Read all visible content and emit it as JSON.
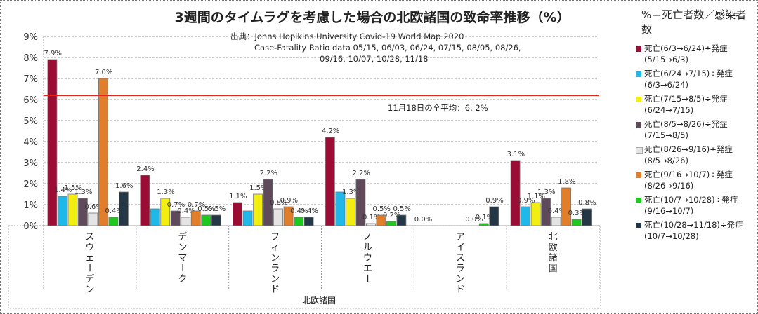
{
  "chart_data": {
    "type": "bar",
    "title": "3週間のタイムラグを考慮した場合の北欧諸国の致命率推移（%）",
    "source_lines": [
      "出典：Johns Hopikins University   Covid-19 World Map 2020",
      "Case-Fatality Ratio data   05/15, 06/03, 06/24,  07/15, 08/05, 08/26,",
      "09/16, 10/07, 10/28,  11/18"
    ],
    "xlabel": "北欧諸国",
    "ylabel": "",
    "ylim": [
      0,
      9
    ],
    "yticks": [
      "0%",
      "1%",
      "2%",
      "3%",
      "4%",
      "5%",
      "6%",
      "7%",
      "8%",
      "9%"
    ],
    "grid": true,
    "legend_title": "%＝死亡者数／感染者数",
    "legend_position": "right",
    "categories": [
      "スウェーデン",
      "デンマーク",
      "フィンランド",
      "ノルウエー",
      "アイスランド",
      "北欧諸国"
    ],
    "series": [
      {
        "name": "死亡(6/3→6/24)÷発症(5/15→6/3)",
        "line1": "死亡(6/3→6/24)÷発症",
        "line2": "(5/15→6/3)",
        "color": "#9b0d34",
        "values": [
          7.9,
          2.4,
          1.1,
          4.2,
          0.0,
          3.1
        ],
        "labels": [
          "7.9%",
          "2.4%",
          "1.1%",
          "4.2%",
          "0.0%",
          "3.1%"
        ]
      },
      {
        "name": "死亡(6/24→7/15)÷発症(6/3→6/24)",
        "line1": "死亡(6/24→7/15)÷発症",
        "line2": "(6/3→6/24)",
        "color": "#1fb8e8",
        "values": [
          1.4,
          0.8,
          0.7,
          1.6,
          0.0,
          0.9
        ],
        "labels": [
          "1.4%",
          "",
          "",
          "",
          "",
          "0.9%"
        ]
      },
      {
        "name": "死亡(7/15→8/5)÷発症(6/24→7/15)",
        "line1": "死亡(7/15→8/5)÷発症",
        "line2": "(6/24→7/15)",
        "color": "#f2ee12",
        "values": [
          1.5,
          1.3,
          1.5,
          1.3,
          0.0,
          1.1
        ],
        "labels": [
          "1.5%",
          "1.3%",
          "1.5%",
          "1.3%",
          "",
          "1.1%"
        ]
      },
      {
        "name": "死亡(8/5→8/26)÷発症(7/15→8/5)",
        "line1": "死亡(8/5→8/26)÷発症",
        "line2": "(7/15→8/5)",
        "color": "#5e4a5a",
        "values": [
          1.3,
          0.7,
          2.2,
          2.2,
          0.0,
          1.3
        ],
        "labels": [
          "1.3%",
          "0.7%",
          "2.2%",
          "2.2%",
          "",
          "1.3%"
        ]
      },
      {
        "name": "死亡(8/26→9/16)÷発症(8/5→8/26)",
        "line1": "死亡(8/26→9/16)÷発症",
        "line2": "(8/5→8/26)",
        "color": "#e4e4e4",
        "values": [
          0.6,
          0.4,
          0.8,
          0.1,
          0.0,
          0.4
        ],
        "labels": [
          "0.6%",
          "0.4%",
          "0.8%",
          "0.1%",
          "",
          "0.4%"
        ]
      },
      {
        "name": "死亡(9/16→10/7)÷発症(8/26→9/16)",
        "line1": "死亡(9/16→10/7)÷発症",
        "line2": "(8/26→9/16)",
        "color": "#e07e2c",
        "values": [
          7.0,
          0.7,
          0.9,
          0.5,
          0.0,
          1.8
        ],
        "labels": [
          "7.0%",
          "0.7%",
          "0.9%",
          "0.5%",
          "0.0%",
          "1.8%"
        ]
      },
      {
        "name": "死亡(10/7→10/28)÷発症(9/16→10/7)",
        "line1": "死亡(10/7→10/28)÷発症",
        "line2": "(9/16→10/7)",
        "color": "#1ec81e",
        "values": [
          0.4,
          0.5,
          0.4,
          0.2,
          0.1,
          0.3
        ],
        "labels": [
          "0.4%",
          "0.5%",
          "0.4%",
          "0.2%",
          "0.1%",
          "0.3%"
        ]
      },
      {
        "name": "死亡(10/28→11/18)÷発症(10/7→10/28)",
        "line1": "死亡(10/28→11/18)÷発症",
        "line2": "(10/7→10/28)",
        "color": "#233746",
        "values": [
          1.6,
          0.5,
          0.4,
          0.5,
          0.9,
          0.8
        ],
        "labels": [
          "1.6%",
          "0.5%",
          "0.4%",
          "0.5%",
          "0.9%",
          "0.8%"
        ]
      }
    ],
    "reference_line": {
      "value": 6.2,
      "label": "11月18日の全平均：6. 2%",
      "color": "#e8231a"
    }
  }
}
